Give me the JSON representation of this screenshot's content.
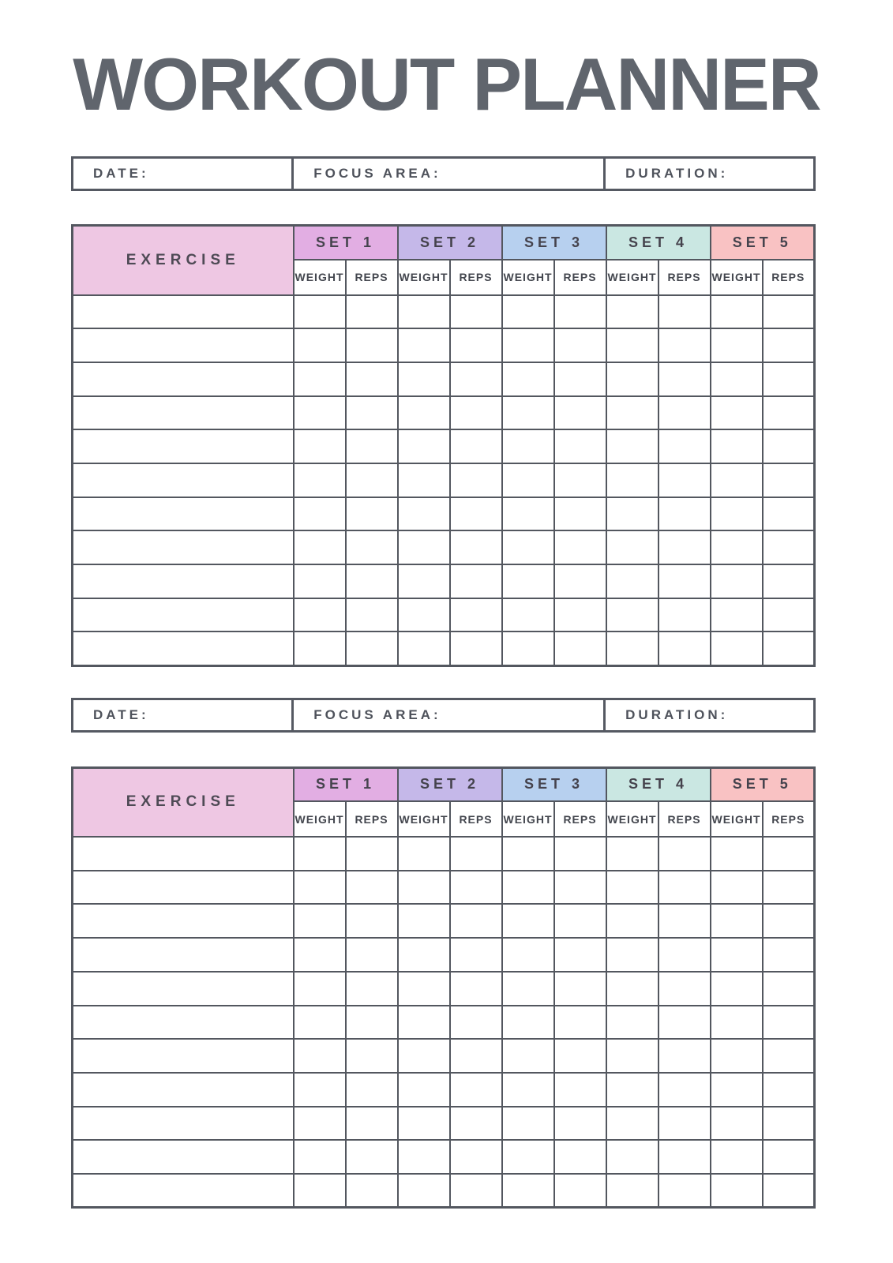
{
  "page": {
    "title": "WORKOUT PLANNER"
  },
  "theme": {
    "title_color": "#60656d",
    "border_color": "#53575f",
    "label_text_color": "#4e525b",
    "header_text_color": "#45434d",
    "exercise_header_bg": "#eec7e3",
    "set_colors": [
      "#e2aee3",
      "#c5b8e9",
      "#b7d0ef",
      "#cae7e2",
      "#f9c2c3"
    ]
  },
  "sections": [
    {
      "info_bar": {
        "date_label": "DATE:",
        "focus_label": "FOCUS AREA:",
        "duration_label": "DURATION:"
      },
      "table": {
        "exercise_header": "EXERCISE",
        "set_headers": [
          "SET 1",
          "SET 2",
          "SET 3",
          "SET 4",
          "SET 5"
        ],
        "weight_label": "WEIGHT",
        "reps_label": "REPS",
        "row_count": 11
      }
    },
    {
      "info_bar": {
        "date_label": "DATE:",
        "focus_label": "FOCUS AREA:",
        "duration_label": "DURATION:"
      },
      "table": {
        "exercise_header": "EXERCISE",
        "set_headers": [
          "SET 1",
          "SET 2",
          "SET 3",
          "SET 4",
          "SET 5"
        ],
        "weight_label": "WEIGHT",
        "reps_label": "REPS",
        "row_count": 11
      }
    }
  ]
}
